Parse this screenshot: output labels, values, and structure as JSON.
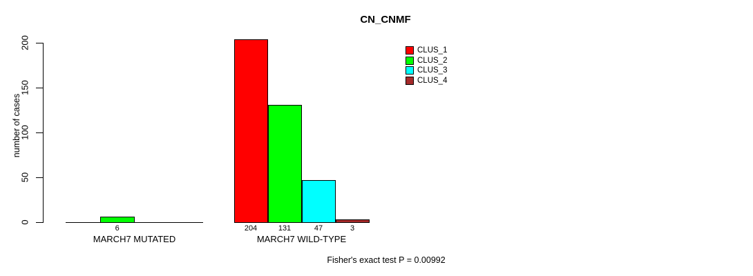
{
  "chart_data": {
    "type": "bar",
    "title": "CN_CNMF",
    "ylabel": "number of cases",
    "yticks": [
      0,
      50,
      100,
      150,
      200
    ],
    "ylim": [
      0,
      210
    ],
    "grid": false,
    "legend_position": "top-right",
    "legend": [
      {
        "label": "CLUS_1",
        "color": "#FF0000"
      },
      {
        "label": "CLUS_2",
        "color": "#00FF00"
      },
      {
        "label": "CLUS_3",
        "color": "#00FFFF"
      },
      {
        "label": "CLUS_4",
        "color": "#A52A2A"
      }
    ],
    "categories": [
      "MARCH7 MUTATED",
      "MARCH7 WILD-TYPE"
    ],
    "series": [
      {
        "name": "CLUS_1",
        "values": [
          0,
          204
        ]
      },
      {
        "name": "CLUS_2",
        "values": [
          6,
          131
        ]
      },
      {
        "name": "CLUS_3",
        "values": [
          0,
          47
        ]
      },
      {
        "name": "CLUS_4",
        "values": [
          0,
          3
        ]
      }
    ],
    "annotation": "Fisher's exact test P = 0.00992"
  }
}
